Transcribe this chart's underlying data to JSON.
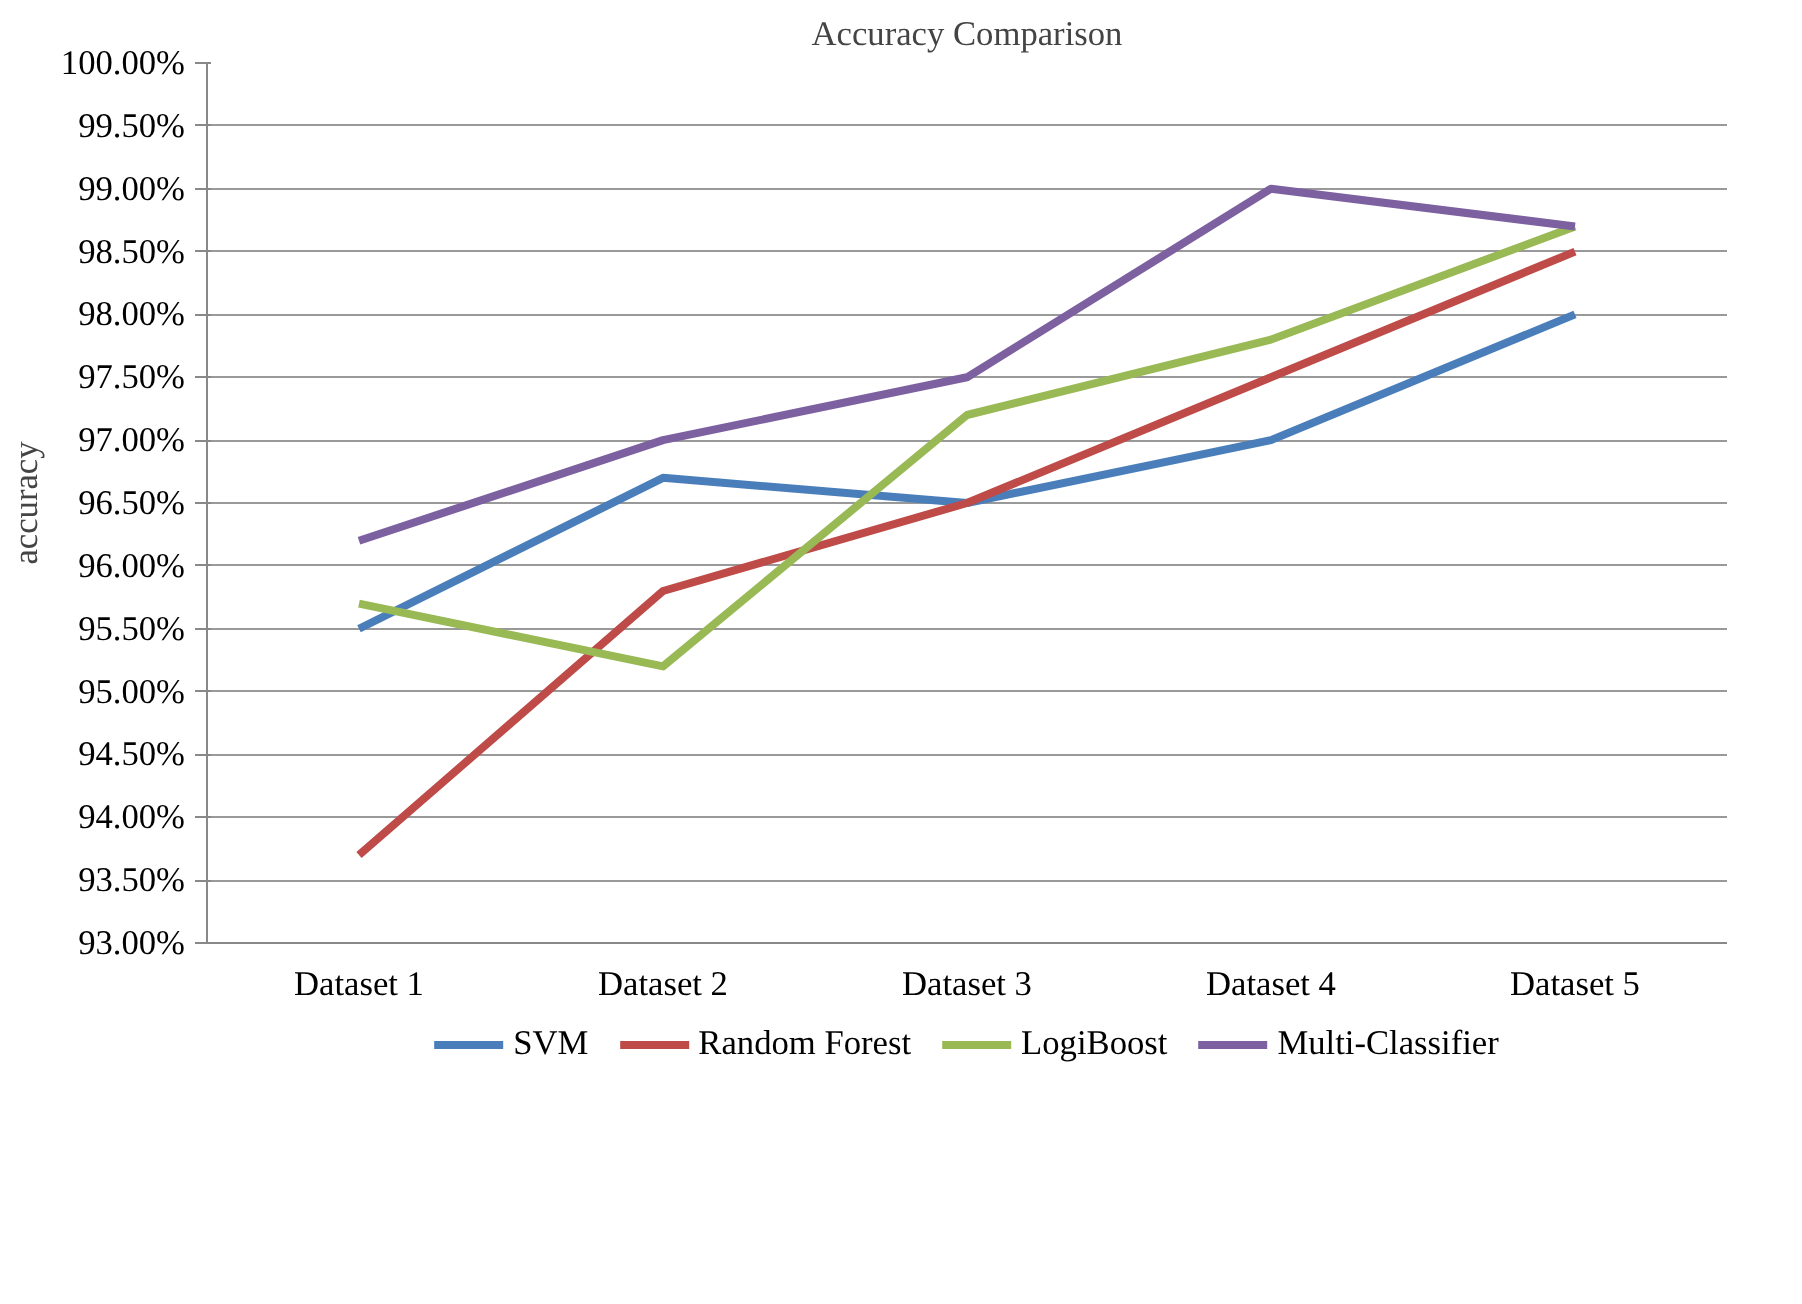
{
  "chart_data": {
    "type": "line",
    "title": "Accuracy Comparison",
    "ylabel": "accuracy",
    "categories": [
      "Dataset 1",
      "Dataset 2",
      "Dataset 3",
      "Dataset 4",
      "Dataset 5"
    ],
    "series": [
      {
        "name": "SVM",
        "color": "#4a7ebb",
        "values": [
          95.5,
          96.7,
          96.5,
          97.0,
          98.0
        ]
      },
      {
        "name": "Random Forest",
        "color": "#be4b48",
        "values": [
          93.7,
          95.8,
          96.5,
          97.5,
          98.5
        ]
      },
      {
        "name": "LogiBoost",
        "color": "#98b954",
        "values": [
          95.7,
          95.2,
          97.2,
          97.8,
          98.7
        ]
      },
      {
        "name": "Multi-Classifier",
        "color": "#7d60a0",
        "values": [
          96.2,
          97.0,
          97.5,
          99.0,
          98.7
        ]
      }
    ],
    "ylim": [
      93,
      100
    ],
    "yticks": [
      {
        "value": 93,
        "label": "93.00%"
      },
      {
        "value": 93.5,
        "label": "93.50%"
      },
      {
        "value": 94,
        "label": "94.00%"
      },
      {
        "value": 94.5,
        "label": "94.50%"
      },
      {
        "value": 95,
        "label": "95.00%"
      },
      {
        "value": 95.5,
        "label": "95.50%"
      },
      {
        "value": 96,
        "label": "96.00%"
      },
      {
        "value": 96.5,
        "label": "96.50%"
      },
      {
        "value": 97,
        "label": "97.00%"
      },
      {
        "value": 97.5,
        "label": "97.50%"
      },
      {
        "value": 98,
        "label": "98.00%"
      },
      {
        "value": 98.5,
        "label": "98.50%"
      },
      {
        "value": 99,
        "label": "99.00%"
      },
      {
        "value": 99.5,
        "label": "99.50%"
      },
      {
        "value": 100,
        "label": "100.00%"
      }
    ],
    "grid": "y",
    "legend": "bottom",
    "marker": "none",
    "line_style": "solid"
  }
}
